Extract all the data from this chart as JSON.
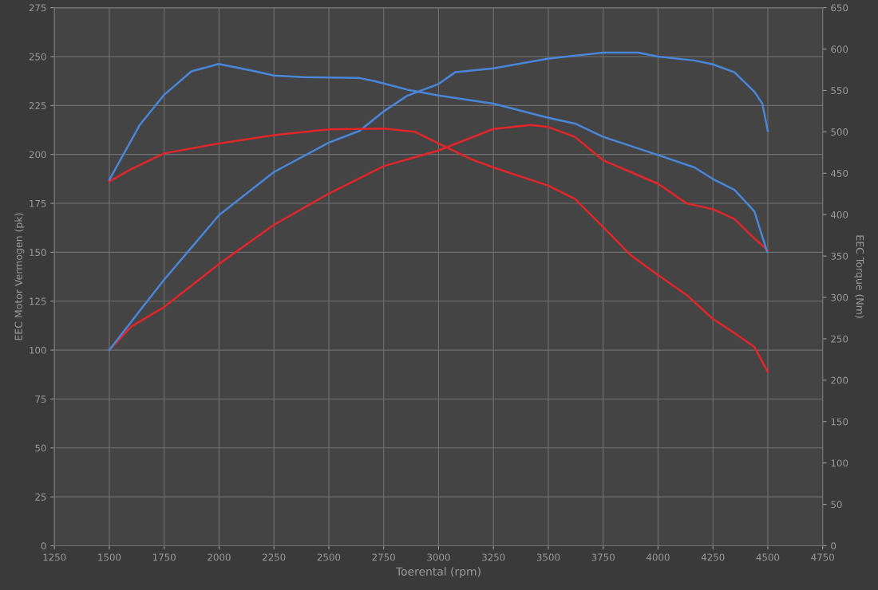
{
  "chart_data": {
    "type": "line",
    "xlabel": "Toerental (rpm)",
    "ylabel": "EEC Motor Vermogen (pk)",
    "y2label": "EEC Torque (Nm)",
    "xlim": [
      1250,
      4750
    ],
    "xticks": [
      1250,
      1500,
      1750,
      2000,
      2250,
      2500,
      2750,
      3000,
      3250,
      3500,
      3750,
      4000,
      4250,
      4500,
      4750
    ],
    "ylim": [
      0,
      275
    ],
    "yticks": [
      0,
      25,
      50,
      75,
      100,
      125,
      150,
      175,
      200,
      225,
      250,
      275
    ],
    "y2lim": [
      0,
      650
    ],
    "y2ticks": [
      0,
      50,
      100,
      150,
      200,
      250,
      300,
      350,
      400,
      450,
      500,
      550,
      600,
      650
    ],
    "grid": true,
    "line_style": "solid",
    "marker": "none",
    "series": [
      {
        "color": "#e0262a",
        "axis": "y",
        "x": [
          1500,
          1600,
          1750,
          2000,
          2250,
          2500,
          2750,
          3000,
          3250,
          3421,
          3500,
          3621,
          3750,
          3875,
          4000,
          4130,
          4250,
          4348,
          4439,
          4500
        ],
        "values": [
          100,
          112,
          122,
          144,
          164,
          180,
          194,
          202,
          213,
          215,
          214,
          209,
          197,
          191,
          185,
          175,
          172,
          167,
          157,
          151
        ]
      },
      {
        "color": "#4a86d8",
        "axis": "y",
        "x": [
          1500,
          1638,
          1750,
          2000,
          2250,
          2500,
          2639,
          2750,
          2857,
          3000,
          3076,
          3250,
          3500,
          3750,
          3910,
          4000,
          4166,
          4250,
          4348,
          4439,
          4475,
          4500
        ],
        "values": [
          100,
          120,
          136,
          169,
          191,
          206,
          212,
          222,
          230,
          236,
          242,
          244,
          249,
          252,
          252,
          250,
          248,
          246,
          242,
          232,
          226,
          212
        ]
      },
      {
        "color": "#e0262a",
        "axis": "y2",
        "x": [
          1500,
          1600,
          1750,
          2000,
          2250,
          2500,
          2750,
          2893,
          3000,
          3148,
          3250,
          3500,
          3621,
          3750,
          3875,
          4000,
          4130,
          4250,
          4348,
          4439,
          4500
        ],
        "values": [
          440,
          455,
          474,
          486,
          496,
          503,
          504,
          500,
          486,
          467,
          457,
          435,
          419,
          385,
          351,
          327,
          303,
          274,
          257,
          240,
          210
        ]
      },
      {
        "color": "#4a86d8",
        "axis": "y2",
        "x": [
          1500,
          1638,
          1747,
          1874,
          1998,
          2166,
          2250,
          2384,
          2639,
          2712,
          2857,
          2999,
          3250,
          3500,
          3621,
          3750,
          3999,
          4166,
          4250,
          4348,
          4439,
          4497
        ],
        "values": [
          442,
          508,
          544,
          573,
          582,
          573,
          568,
          566,
          565,
          561,
          551,
          544,
          534,
          517,
          510,
          494,
          472,
          457,
          443,
          430,
          404,
          355
        ]
      }
    ]
  }
}
